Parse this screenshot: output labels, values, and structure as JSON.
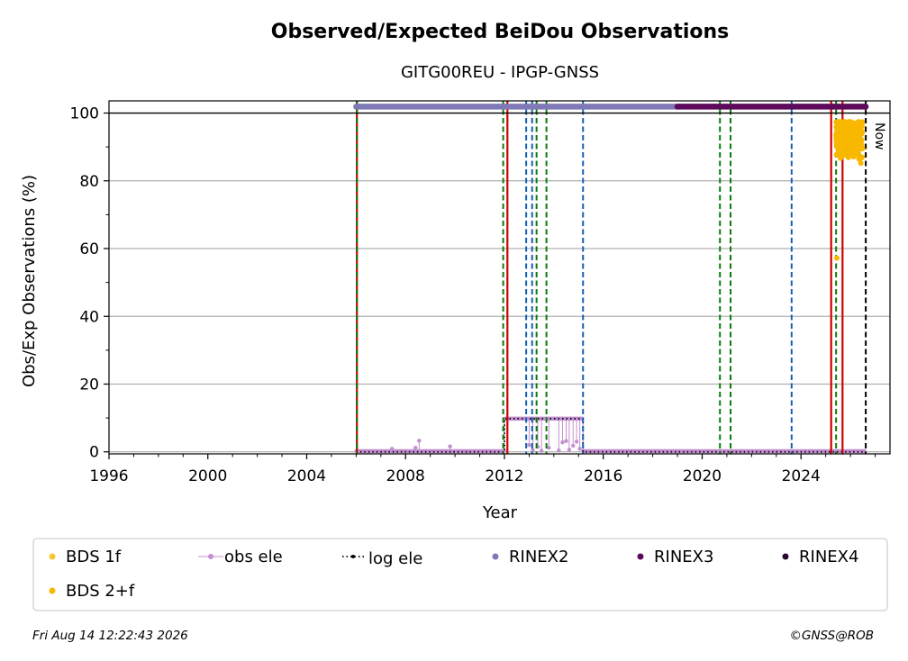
{
  "chart_data": {
    "type": "scatter",
    "title": "Observed/Expected BeiDou Observations",
    "subtitle": "GITG00REU - IPGP-GNSS",
    "xlabel": "Year",
    "ylabel": "Obs/Exp Observations (%)",
    "xlim": [
      1996,
      2027.6
    ],
    "ylim": [
      -0.6,
      103.6
    ],
    "xticks": [
      1996,
      2000,
      2004,
      2008,
      2012,
      2016,
      2020,
      2024
    ],
    "yticks": [
      0,
      20,
      40,
      60,
      80,
      100
    ],
    "grid": "horizontal",
    "reference_line": 100,
    "now_label": "Now",
    "now_x": 2026.62,
    "event_lines": [
      {
        "x": 2006.03,
        "style": "red-solid"
      },
      {
        "x": 2006.03,
        "style": "green-dashed"
      },
      {
        "x": 2011.95,
        "style": "green-dashed"
      },
      {
        "x": 2012.12,
        "style": "red-solid"
      },
      {
        "x": 2012.88,
        "style": "blue-dashed"
      },
      {
        "x": 2013.12,
        "style": "blue-dashed"
      },
      {
        "x": 2013.3,
        "style": "green-dashed"
      },
      {
        "x": 2013.7,
        "style": "green-dashed"
      },
      {
        "x": 2015.18,
        "style": "blue-dashed"
      },
      {
        "x": 2020.72,
        "style": "green-dashed"
      },
      {
        "x": 2021.15,
        "style": "green-dashed"
      },
      {
        "x": 2023.62,
        "style": "blue-dashed"
      },
      {
        "x": 2025.22,
        "style": "red-solid"
      },
      {
        "x": 2025.42,
        "style": "green-dashed"
      },
      {
        "x": 2025.68,
        "style": "red-solid"
      }
    ],
    "rinex_bars": [
      {
        "name": "RINEX2",
        "color": "#8079b8",
        "x_start": 2006.0,
        "x_end": 2019.0,
        "y": 101.9
      },
      {
        "name": "RINEX3",
        "color": "#5e0a5c",
        "x_start": 2019.0,
        "x_end": 2026.62,
        "y": 101.9
      }
    ],
    "log_ele": {
      "name": "log ele",
      "points": [
        [
          2006.0,
          0
        ],
        [
          2012.0,
          0
        ],
        [
          2012.0,
          9.8
        ],
        [
          2015.18,
          9.8
        ],
        [
          2015.18,
          0
        ],
        [
          2026.62,
          0
        ]
      ]
    },
    "obs_ele": {
      "name": "obs ele",
      "color": "#c38fd0",
      "segments": [
        {
          "x_start": 2006.0,
          "x_end": 2012.0,
          "y": 0.2
        },
        {
          "x_start": 2012.0,
          "x_end": 2015.18,
          "y": 9.8
        },
        {
          "x_start": 2015.18,
          "x_end": 2026.62,
          "y": 0.2
        }
      ],
      "spikes": [
        [
          2007.45,
          0.9
        ],
        [
          2008.4,
          1.2
        ],
        [
          2008.55,
          3.3
        ],
        [
          2009.8,
          1.6
        ],
        [
          2013.0,
          2.0
        ],
        [
          2013.15,
          0.5
        ],
        [
          2013.35,
          1.5
        ],
        [
          2013.5,
          0.3
        ],
        [
          2013.8,
          1.2
        ],
        [
          2014.2,
          0.4
        ],
        [
          2014.35,
          2.8
        ],
        [
          2014.5,
          3.2
        ],
        [
          2014.62,
          0.6
        ],
        [
          2014.78,
          1.8
        ],
        [
          2014.92,
          3.0
        ],
        [
          2015.05,
          0.9
        ]
      ]
    },
    "series": [
      {
        "name": "BDS 1f",
        "color": "#f7c531",
        "points": []
      },
      {
        "name": "BDS 2+f",
        "color": "#f8b800",
        "cluster": {
          "x_start": 2025.42,
          "x_end": 2026.5,
          "y_min": 86.5,
          "y_max": 97.5
        },
        "points": [
          [
            2025.45,
            57.2
          ],
          [
            2025.55,
            88.6
          ],
          [
            2025.72,
            89.5
          ],
          [
            2026.1,
            88.0
          ],
          [
            2026.35,
            86.4
          ],
          [
            2026.42,
            85.2
          ]
        ]
      }
    ],
    "legend": [
      {
        "label": "BDS 1f",
        "marker": "dot",
        "color": "#f7c531"
      },
      {
        "label": "obs ele",
        "marker": "line-dot",
        "color": "#c38fd0"
      },
      {
        "label": "log ele",
        "marker": "dotted-line",
        "color": "#000000"
      },
      {
        "label": "RINEX2",
        "marker": "dot",
        "color": "#8079b8"
      },
      {
        "label": "RINEX3",
        "marker": "dot",
        "color": "#5e0a5c"
      },
      {
        "label": "RINEX4",
        "marker": "dot",
        "color": "#2b0a30"
      },
      {
        "label": "BDS 2+f",
        "marker": "dot",
        "color": "#f8b800"
      }
    ],
    "legend_placement": "below plot",
    "footer_left": "Fri Aug 14 12:22:43 2026",
    "footer_right": "©GNSS@ROB"
  }
}
